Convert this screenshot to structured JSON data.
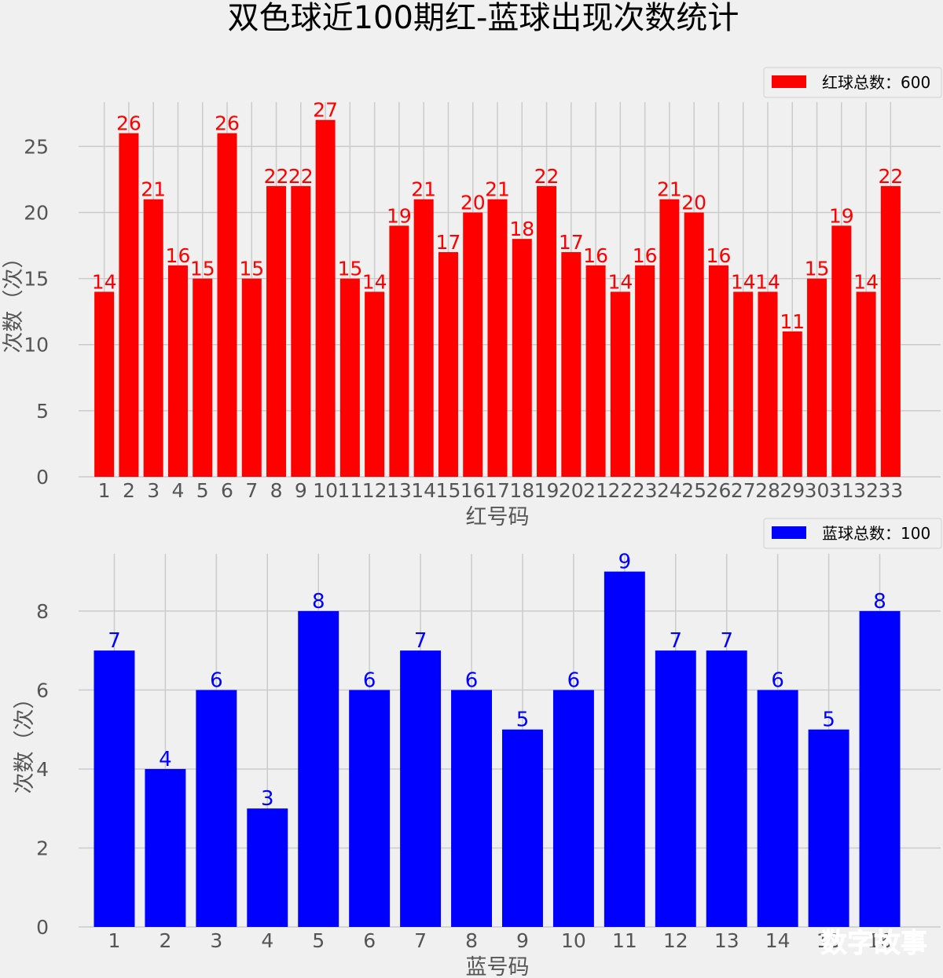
{
  "title": "双色球近100期红-蓝球出现次数统计",
  "watermark": "数字故事",
  "chart_data": [
    {
      "type": "bar",
      "categories": [
        "1",
        "2",
        "3",
        "4",
        "5",
        "6",
        "7",
        "8",
        "9",
        "10",
        "11",
        "12",
        "13",
        "14",
        "15",
        "16",
        "17",
        "18",
        "19",
        "20",
        "21",
        "22",
        "23",
        "24",
        "25",
        "26",
        "27",
        "28",
        "29",
        "30",
        "31",
        "32",
        "33"
      ],
      "values": [
        14,
        26,
        21,
        16,
        15,
        26,
        15,
        22,
        22,
        27,
        15,
        14,
        19,
        21,
        17,
        20,
        21,
        18,
        22,
        17,
        16,
        14,
        16,
        21,
        20,
        16,
        14,
        14,
        11,
        15,
        19,
        14,
        22
      ],
      "xlabel": "红号码",
      "ylabel": "次数（次）",
      "ylim": [
        0,
        28.35
      ],
      "yticks": [
        0,
        5,
        10,
        15,
        20,
        25
      ],
      "legend": "红球总数：600",
      "legend_position": "top-right",
      "color": "#ff0000",
      "grid": true
    },
    {
      "type": "bar",
      "categories": [
        "1",
        "2",
        "3",
        "4",
        "5",
        "6",
        "7",
        "8",
        "9",
        "10",
        "11",
        "12",
        "13",
        "14",
        "15",
        "16"
      ],
      "values": [
        7,
        4,
        6,
        3,
        8,
        6,
        7,
        6,
        5,
        6,
        9,
        7,
        7,
        6,
        5,
        8
      ],
      "xlabel": "蓝号码",
      "ylabel": "次数（次）",
      "ylim": [
        0,
        9.45
      ],
      "yticks": [
        0,
        2,
        4,
        6,
        8
      ],
      "legend": "蓝球总数：100",
      "legend_position": "top-right",
      "color": "#0000ff",
      "grid": true
    }
  ]
}
